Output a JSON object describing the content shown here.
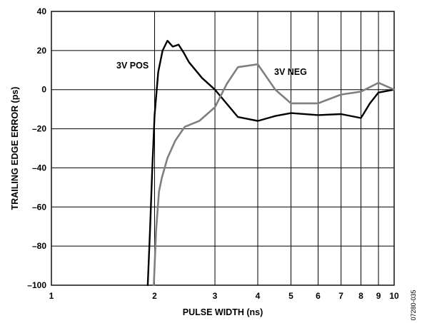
{
  "chart_data": {
    "type": "line",
    "xlabel": "PULSE WIDTH (ns)",
    "ylabel": "TRAILING EDGE ERROR (ps)",
    "x_scale": "log",
    "xlim": [
      1,
      10
    ],
    "ylim": [
      -100,
      40
    ],
    "x_ticks": [
      1,
      2,
      3,
      4,
      5,
      6,
      7,
      8,
      9,
      10
    ],
    "y_ticks": [
      40,
      20,
      0,
      -20,
      -40,
      -60,
      -80,
      -100
    ],
    "y_tick_labels": [
      "40",
      "20",
      "0",
      "–20",
      "–40",
      "–60",
      "–80",
      "–100"
    ],
    "grid": true,
    "series": [
      {
        "name": "3V POS",
        "color": "#000000",
        "x": [
          1.91,
          1.94,
          1.97,
          2.0,
          2.05,
          2.11,
          2.18,
          2.26,
          2.35,
          2.43,
          2.52,
          2.75,
          3.0,
          3.5,
          4.0,
          4.5,
          5.0,
          6.0,
          7.0,
          8.0,
          8.5,
          9.0,
          10.0
        ],
        "y": [
          -100,
          -72,
          -40,
          -13,
          9,
          20,
          25,
          22,
          23,
          19,
          14,
          6,
          0,
          -14,
          -16,
          -13.5,
          -12,
          -13,
          -12.5,
          -14.5,
          -7,
          -1.5,
          0
        ]
      },
      {
        "name": "3V NEG",
        "color": "#7f7f7f",
        "x": [
          1.99,
          2.02,
          2.06,
          2.1,
          2.18,
          2.3,
          2.45,
          2.7,
          3.0,
          3.25,
          3.5,
          4.0,
          4.5,
          5.0,
          6.0,
          7.0,
          8.0,
          9.0,
          10.0
        ],
        "y": [
          -100,
          -72,
          -52,
          -45,
          -35,
          -26,
          -19,
          -16,
          -9,
          3,
          11.5,
          13,
          0,
          -7,
          -7,
          -2.5,
          -1,
          3.5,
          0
        ]
      }
    ],
    "annotations": [
      "07280-035"
    ]
  }
}
